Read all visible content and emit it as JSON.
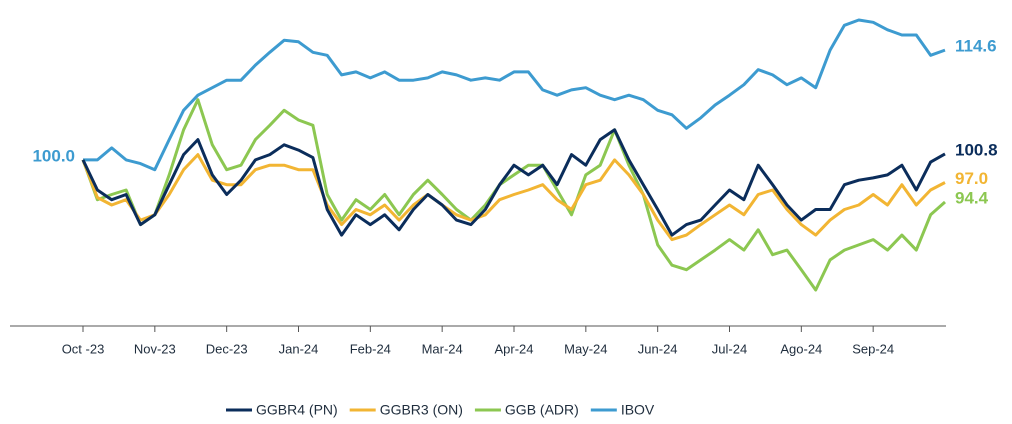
{
  "chart_data": {
    "type": "line",
    "categories": [
      "Oct -23",
      null,
      null,
      null,
      null,
      "Nov-23",
      null,
      null,
      null,
      null,
      "Dec-23",
      null,
      null,
      null,
      null,
      "Jan-24",
      null,
      null,
      null,
      null,
      "Feb-24",
      null,
      null,
      null,
      null,
      "Mar-24",
      null,
      null,
      null,
      null,
      "Apr-24",
      null,
      null,
      null,
      null,
      "May-24",
      null,
      null,
      null,
      null,
      "Jun-24",
      null,
      null,
      null,
      null,
      "Jul-24",
      null,
      null,
      null,
      null,
      "Ago-24",
      null,
      null,
      null,
      null,
      "Sep-24",
      null,
      null,
      null,
      null,
      null
    ],
    "series": [
      {
        "name": "GGBR4 (PN)",
        "color": "#0b2d5b",
        "values": [
          100,
          96.0,
          94.7,
          95.4,
          91.4,
          92.7,
          96.7,
          100.7,
          102.7,
          98.0,
          95.4,
          97.3,
          100,
          100.7,
          102,
          101.3,
          100.3,
          93.4,
          90.0,
          92.7,
          91.4,
          92.7,
          90.7,
          93.4,
          95.4,
          94.0,
          92.0,
          91.4,
          93.4,
          96.7,
          99.3,
          98.0,
          99.3,
          96.7,
          100.7,
          99.3,
          102.7,
          104.0,
          100,
          96.7,
          93.4,
          90.0,
          91.4,
          92.0,
          94.0,
          96.0,
          94.7,
          99.3,
          96.7,
          94.0,
          92.0,
          93.4,
          93.4,
          96.7,
          97.3,
          97.6,
          98.0,
          99.3,
          96.0,
          99.7,
          100.8
        ],
        "value_labels": [
          null,
          null,
          null,
          null,
          null,
          null,
          null,
          null,
          null,
          null,
          null,
          null,
          null,
          null,
          null,
          null,
          null,
          null,
          null,
          null,
          null,
          null,
          null,
          null,
          null,
          null,
          null,
          null,
          null,
          null,
          null,
          null,
          null,
          null,
          null,
          null,
          null,
          null,
          null,
          null,
          null,
          null,
          null,
          null,
          null,
          null,
          null,
          null,
          null,
          null,
          null,
          null,
          null,
          null,
          null,
          null,
          null,
          null,
          null,
          null,
          "100.8"
        ]
      },
      {
        "name": "GGBR3 (ON)",
        "color": "#f2b533",
        "values": [
          100,
          95.0,
          94.0,
          94.7,
          92.0,
          92.7,
          95.4,
          98.7,
          100.7,
          97.3,
          96.7,
          96.7,
          98.7,
          99.3,
          99.3,
          98.7,
          98.7,
          94.0,
          91.4,
          93.4,
          92.7,
          94.0,
          92.0,
          94.0,
          95.4,
          94.0,
          92.7,
          92.0,
          92.7,
          94.7,
          95.4,
          96.0,
          96.7,
          94.7,
          93.4,
          96.7,
          97.3,
          100,
          98.0,
          95.4,
          92.0,
          89.4,
          90.0,
          91.4,
          92.7,
          94.0,
          92.7,
          95.4,
          96.0,
          93.4,
          91.4,
          90.0,
          92.0,
          93.4,
          94.0,
          95.4,
          94.0,
          96.7,
          94.0,
          96.0,
          97.0
        ],
        "value_labels": [
          null,
          null,
          null,
          null,
          null,
          null,
          null,
          null,
          null,
          null,
          null,
          null,
          null,
          null,
          null,
          null,
          null,
          null,
          null,
          null,
          null,
          null,
          null,
          null,
          null,
          null,
          null,
          null,
          null,
          null,
          null,
          null,
          null,
          null,
          null,
          null,
          null,
          null,
          null,
          null,
          null,
          null,
          null,
          null,
          null,
          null,
          null,
          null,
          null,
          null,
          null,
          null,
          null,
          null,
          null,
          null,
          null,
          null,
          null,
          null,
          "97.0"
        ]
      },
      {
        "name": "GGB (ADR)",
        "color": "#8cc751",
        "values": [
          100,
          94.7,
          95.4,
          96.0,
          91.4,
          92.7,
          98.0,
          104.0,
          108.0,
          102.0,
          98.7,
          99.3,
          102.7,
          104.6,
          106.6,
          105.3,
          104.6,
          95.4,
          92.0,
          94.7,
          93.4,
          95.4,
          92.7,
          95.4,
          97.3,
          95.4,
          93.4,
          92.0,
          94.0,
          96.7,
          98.0,
          99.3,
          99.3,
          96.0,
          92.7,
          98.0,
          99.3,
          104.0,
          99.3,
          95.4,
          88.7,
          86.0,
          85.4,
          86.7,
          88.0,
          89.4,
          88.0,
          90.7,
          87.4,
          88.0,
          85.4,
          82.7,
          86.7,
          88.0,
          88.7,
          89.4,
          88.0,
          90.0,
          88.0,
          92.7,
          94.4
        ],
        "value_labels": [
          null,
          null,
          null,
          null,
          null,
          null,
          null,
          null,
          null,
          null,
          null,
          null,
          null,
          null,
          null,
          null,
          null,
          null,
          null,
          null,
          null,
          null,
          null,
          null,
          null,
          null,
          null,
          null,
          null,
          null,
          null,
          null,
          null,
          null,
          null,
          null,
          null,
          null,
          null,
          null,
          null,
          null,
          null,
          null,
          null,
          null,
          null,
          null,
          null,
          null,
          null,
          null,
          null,
          null,
          null,
          null,
          null,
          null,
          null,
          null,
          "94.4"
        ]
      },
      {
        "name": "IBOV",
        "color": "#3d9bd0",
        "values": [
          100,
          100,
          101.6,
          100,
          99.5,
          98.7,
          102.7,
          106.6,
          108.6,
          109.6,
          110.6,
          110.6,
          112.6,
          114.3,
          115.9,
          115.7,
          114.3,
          113.9,
          111.3,
          111.7,
          110.9,
          111.7,
          110.6,
          110.6,
          110.9,
          111.7,
          111.3,
          110.6,
          110.9,
          110.6,
          111.7,
          111.7,
          109.3,
          108.6,
          109.3,
          109.6,
          108.6,
          108.0,
          108.6,
          108.0,
          106.6,
          106.0,
          104.2,
          105.6,
          107.3,
          108.6,
          110.0,
          112.0,
          111.3,
          110.0,
          110.9,
          109.6,
          114.6,
          117.9,
          118.6,
          118.3,
          117.3,
          116.6,
          116.6,
          113.9,
          114.6
        ],
        "value_labels": [
          "100.0",
          null,
          null,
          null,
          null,
          null,
          null,
          null,
          null,
          null,
          null,
          null,
          null,
          null,
          null,
          null,
          null,
          null,
          null,
          null,
          null,
          null,
          null,
          null,
          null,
          null,
          null,
          null,
          null,
          null,
          null,
          null,
          null,
          null,
          null,
          null,
          null,
          null,
          null,
          null,
          null,
          null,
          null,
          null,
          null,
          null,
          null,
          null,
          null,
          null,
          null,
          null,
          null,
          null,
          null,
          null,
          null,
          null,
          null,
          null,
          "114.6"
        ]
      }
    ]
  }
}
